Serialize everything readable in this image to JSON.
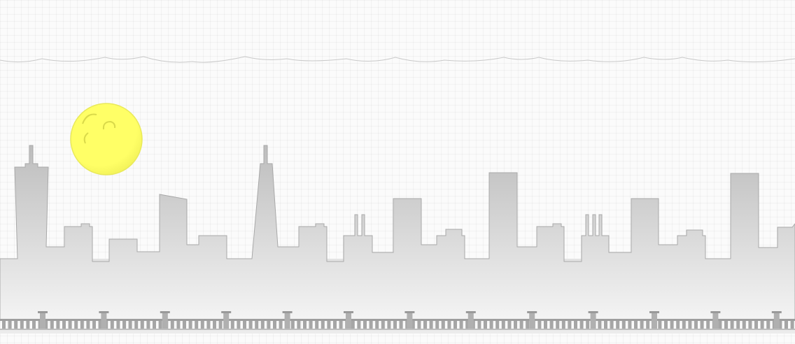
{
  "scene": {
    "description_free": true,
    "colors": {
      "background": "#fbfbfb",
      "cloud_line": "#c9c9c9",
      "moon_fill": "#ffff66",
      "moon_edge": "#e8e860",
      "building_top": "#bdbdbd",
      "building_bottom": "#f2f2f2",
      "building_stroke": "#a8a8a8",
      "ground": "#f0f0f0",
      "track": "#9e9e9e",
      "track_light": "#cfcfcf"
    },
    "icons": [
      "moon-icon",
      "city-skyline",
      "railway-track"
    ]
  }
}
